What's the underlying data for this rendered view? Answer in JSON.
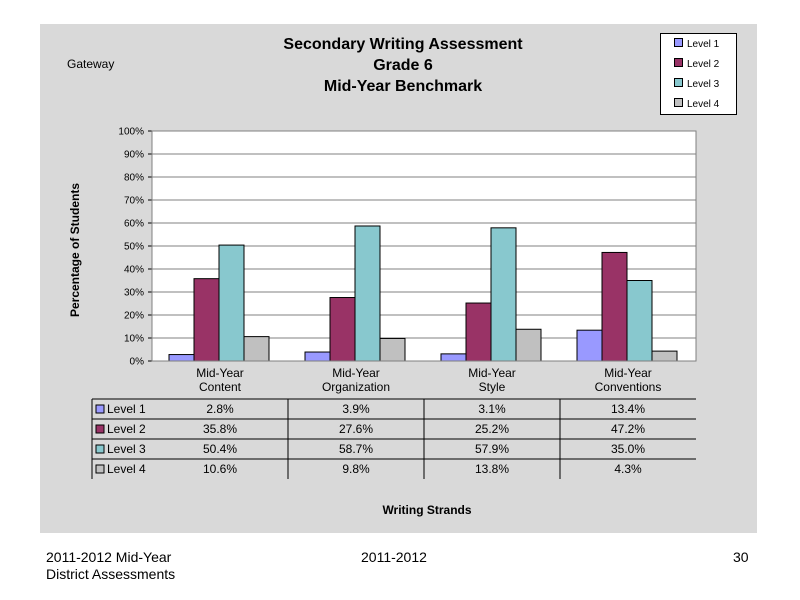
{
  "slide": {
    "region": "Gateway",
    "footer_left_line1": "2011-2012  Mid-Year",
    "footer_left_line2": "District Assessments",
    "footer_center": "2011-2012",
    "page_number": "30"
  },
  "chart_data": {
    "type": "bar",
    "title_lines": [
      "Secondary Writing Assessment",
      "Grade 6",
      "Mid-Year Benchmark"
    ],
    "xlabel": "Writing Strands",
    "ylabel": "Percentage of Students",
    "ylim": [
      0,
      100
    ],
    "yticks": [
      "0%",
      "10%",
      "20%",
      "30%",
      "40%",
      "50%",
      "60%",
      "70%",
      "80%",
      "90%",
      "100%"
    ],
    "categories": [
      [
        "Mid-Year",
        "Content"
      ],
      [
        "Mid-Year",
        "Organization"
      ],
      [
        "Mid-Year",
        "Style"
      ],
      [
        "Mid-Year",
        "Conventions"
      ]
    ],
    "series": [
      {
        "name": "Level 1",
        "color": "#9999ff",
        "values": [
          2.8,
          3.9,
          3.1,
          13.4
        ],
        "labels": [
          "2.8%",
          "3.9%",
          "3.1%",
          "13.4%"
        ]
      },
      {
        "name": "Level 2",
        "color": "#993366",
        "values": [
          35.8,
          27.6,
          25.2,
          47.2
        ],
        "labels": [
          "35.8%",
          "27.6%",
          "25.2%",
          "47.2%"
        ]
      },
      {
        "name": "Level 3",
        "color": "#88c8ce",
        "values": [
          50.4,
          58.7,
          57.9,
          35.0
        ],
        "labels": [
          "50.4%",
          "58.7%",
          "57.9%",
          "35.0%"
        ]
      },
      {
        "name": "Level 4",
        "color": "#c0c0c0",
        "values": [
          10.6,
          9.8,
          13.8,
          4.3
        ],
        "labels": [
          "10.6%",
          "9.8%",
          "13.8%",
          "4.3%"
        ]
      }
    ],
    "grid": true,
    "legend_position": "top-right",
    "data_table": true
  }
}
